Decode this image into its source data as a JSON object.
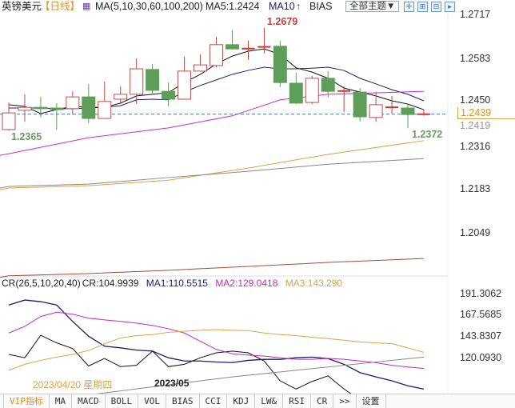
{
  "header": {
    "symbol": "英镑美元",
    "period": "【日线】",
    "ma_params": "MA(5,10,30,60,100,200)",
    "ma5": "MA5:1.2424",
    "ma10": "MA10",
    "bias": "BIAS",
    "theme_button": "全部主题▼"
  },
  "price_axis": {
    "ticks": [
      "1.2717",
      "1.2583",
      "1.2450",
      "1.2316",
      "1.2183",
      "1.2049"
    ],
    "last_price": "1.2439",
    "hidden_price": "1.2419"
  },
  "annotations": {
    "high": "1.2679",
    "low_left": "1.2365",
    "low_right": "1.2372"
  },
  "colors": {
    "up": "#b5524f",
    "down": "#5f9e5a",
    "doji": "#c83a32",
    "ma5": "#111111",
    "ma10": "#1c1c70",
    "ma30": "#d02ad0",
    "ma60": "#e0a048",
    "ma100": "#888888",
    "ma200": "#a84a3a",
    "cr": "#111111",
    "cr_ma1": "#1c1c70",
    "cr_ma2": "#c828c8",
    "cr_ma3": "#e0a048",
    "cr_ma4": "#888888",
    "last_line": "#3a7ab0"
  },
  "chart_data": [
    {
      "type": "candlestick",
      "title": "英镑美元",
      "x": "candle index",
      "ylim": [
        1.203,
        1.273
      ],
      "candles": [
        [
          1.2368,
          1.2451,
          1.2365,
          1.2419
        ],
        [
          1.2427,
          1.2476,
          1.2392,
          1.2436
        ],
        [
          1.2436,
          1.2468,
          1.2405,
          1.2432
        ],
        [
          1.2434,
          1.2449,
          1.2368,
          1.2429
        ],
        [
          1.2432,
          1.2485,
          1.2414,
          1.2468
        ],
        [
          1.2468,
          1.2508,
          1.2388,
          1.2402
        ],
        [
          1.2402,
          1.2515,
          1.2402,
          1.2454
        ],
        [
          1.2461,
          1.25,
          1.2446,
          1.2476
        ],
        [
          1.2476,
          1.2586,
          1.2446,
          1.2554
        ],
        [
          1.2552,
          1.2569,
          1.2478,
          1.2488
        ],
        [
          1.2485,
          1.2512,
          1.2439,
          1.2461
        ],
        [
          1.2461,
          1.2591,
          1.2461,
          1.2547
        ],
        [
          1.2547,
          1.2598,
          1.2547,
          1.2566
        ],
        [
          1.2564,
          1.2652,
          1.2559,
          1.2628
        ],
        [
          1.2628,
          1.2672,
          1.2613,
          1.2615
        ],
        [
          1.2615,
          1.264,
          1.2581,
          1.2616
        ],
        [
          1.262,
          1.2679,
          1.2601,
          1.2621
        ],
        [
          1.2623,
          1.264,
          1.2498,
          1.2512
        ],
        [
          1.251,
          1.2542,
          1.2446,
          1.2449
        ],
        [
          1.2451,
          1.2532,
          1.2446,
          1.2525
        ],
        [
          1.2525,
          1.2547,
          1.2466,
          1.2485
        ],
        [
          1.2485,
          1.25,
          1.2422,
          1.2486
        ],
        [
          1.2483,
          1.2495,
          1.2392,
          1.2407
        ],
        [
          1.2405,
          1.2483,
          1.2392,
          1.2444
        ],
        [
          1.2436,
          1.2471,
          1.2417,
          1.2436
        ],
        [
          1.2434,
          1.2446,
          1.2372,
          1.2414
        ],
        [
          1.2414,
          1.2429,
          1.241,
          1.2415
        ]
      ],
      "series": [
        {
          "name": "MA5",
          "values": [
            1.2444,
            1.2439,
            1.2417,
            1.2429,
            1.2439,
            1.2436,
            1.2436,
            1.2449,
            1.2471,
            1.2476,
            1.2481,
            1.2512,
            1.2537,
            1.2569,
            1.2593,
            1.2608,
            1.2615,
            1.2598,
            1.2557,
            1.2544,
            1.2525,
            1.2495,
            1.2483,
            1.2471,
            1.2456,
            1.2446,
            1.2429
          ]
        },
        {
          "name": "MA10",
          "values": [
            1.2434,
            1.2434,
            1.2434,
            1.2432,
            1.2432,
            1.2434,
            1.2436,
            1.2441,
            1.2459,
            1.2461,
            1.2459,
            1.2483,
            1.2503,
            1.252,
            1.2537,
            1.2549,
            1.2559,
            1.2554,
            1.2554,
            1.2556,
            1.2559,
            1.2549,
            1.2525,
            1.2508,
            1.249,
            1.2476,
            1.2456
          ]
        },
        {
          "name": "MA30",
          "points": [
            [
              0,
              1.2294
            ],
            [
              5,
              1.2343
            ],
            [
              10,
              1.2373
            ],
            [
              14,
              1.241
            ],
            [
              17,
              1.2459
            ],
            [
              20,
              1.2476
            ],
            [
              26,
              1.2485
            ]
          ]
        },
        {
          "name": "MA60",
          "points": [
            [
              0,
              1.2189
            ],
            [
              5,
              1.2196
            ],
            [
              10,
              1.2213
            ],
            [
              15,
              1.225
            ],
            [
              20,
              1.2292
            ],
            [
              26,
              1.2334
            ]
          ]
        },
        {
          "name": "MA100",
          "points": [
            [
              0,
              1.2194
            ],
            [
              5,
              1.2201
            ],
            [
              10,
              1.2221
            ],
            [
              15,
              1.224
            ],
            [
              20,
              1.2262
            ],
            [
              26,
              1.2279
            ]
          ]
        },
        {
          "name": "MA200",
          "points": [
            [
              0,
              1.192
            ],
            [
              5,
              1.1927
            ],
            [
              10,
              1.1937
            ],
            [
              15,
              1.1949
            ],
            [
              20,
              1.1961
            ],
            [
              26,
              1.1973
            ]
          ]
        }
      ]
    },
    {
      "type": "line",
      "title": "CR(26,5,10,20,40)",
      "ticks": [
        "191.3062",
        "167.5685",
        "143.8307",
        "120.0930"
      ],
      "series": [
        {
          "name": "CR",
          "label": "CR:104.9939",
          "values": [
            141.5,
            138.5,
            158.5,
            151.7,
            146.7,
            131.2,
            137.9,
            130.6,
            131.8,
            144.4,
            130.6,
            132.7,
            138.5,
            142.9,
            144.4,
            142.9,
            135.6,
            118.0,
            110.7,
            117.4,
            122.4,
            110.7,
            101.0,
            96.6,
            102.5,
            105.7,
            105.0
          ]
        },
        {
          "name": "MA1",
          "label": "MA1:110.5515",
          "values": [
            185.4,
            189.8,
            188.4,
            185.4,
            170.8,
            157.6,
            148.8,
            147.3,
            145.3,
            144.4,
            138.5,
            135.6,
            135.6,
            134.7,
            134.2,
            136.2,
            137.1,
            137.1,
            138.5,
            139.1,
            137.7,
            132.7,
            125.3,
            121.5,
            118.0,
            113.6,
            110.6
          ]
        },
        {
          "name": "MA2",
          "label": "MA2:129.0418",
          "values": [
            160.5,
            166.4,
            175.2,
            179.0,
            177.2,
            173.7,
            172.2,
            170.8,
            169.3,
            167.3,
            164.3,
            160.5,
            153.2,
            145.9,
            142.0,
            140.9,
            140.0,
            138.5,
            137.1,
            137.1,
            137.9,
            137.1,
            135.6,
            134.1,
            131.8,
            130.3,
            129.0
          ]
        },
        {
          "name": "MA3",
          "label": "MA3:143.290",
          "values": [
            127.4,
            132.7,
            136.2,
            139.1,
            141.5,
            145.0,
            150.9,
            156.1,
            158.2,
            159.1,
            161.1,
            162.0,
            162.9,
            163.5,
            162.9,
            162.6,
            160.5,
            159.1,
            158.2,
            156.7,
            155.5,
            154.1,
            152.6,
            151.7,
            151.1,
            147.3,
            143.3
          ]
        },
        {
          "points": [
            [
              0,
              96.6
            ],
            [
              14,
              121.5
            ],
            [
              26,
              139.1
            ]
          ]
        }
      ]
    }
  ],
  "dates": {
    "cursor": "2023/04/20 星期四",
    "month": "2023/05"
  },
  "tabs": [
    "VIP指标",
    "MA",
    "MACD",
    "BOLL",
    "VOL",
    "BIAS",
    "CCI",
    "KDJ",
    "LW&",
    "RSI",
    "CR",
    ">>",
    "设置"
  ]
}
